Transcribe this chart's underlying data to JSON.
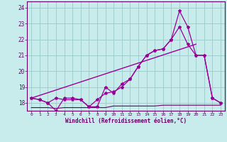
{
  "xlabel": "Windchill (Refroidissement éolien,°C)",
  "background_color": "#c8ecec",
  "grid_color": "#a0cece",
  "line_color": "#990099",
  "dark_line_color": "#660066",
  "xlim": [
    -0.5,
    23.5
  ],
  "ylim": [
    17.5,
    24.4
  ],
  "yticks": [
    18,
    19,
    20,
    21,
    22,
    23,
    24
  ],
  "xticks": [
    0,
    1,
    2,
    3,
    4,
    5,
    6,
    7,
    8,
    9,
    10,
    11,
    12,
    13,
    14,
    15,
    16,
    17,
    18,
    19,
    20,
    21,
    22,
    23
  ],
  "series1_x": [
    0,
    1,
    2,
    3,
    4,
    5,
    6,
    7,
    8,
    9,
    10,
    11,
    12,
    13,
    14,
    15,
    16,
    17,
    18,
    19,
    20,
    21,
    22,
    23
  ],
  "series1_y": [
    18.3,
    18.2,
    18.0,
    18.3,
    18.2,
    18.2,
    18.2,
    17.75,
    18.2,
    18.6,
    18.7,
    19.0,
    19.5,
    20.3,
    21.0,
    21.3,
    21.4,
    22.0,
    22.8,
    21.7,
    21.0,
    21.0,
    18.3,
    18.0
  ],
  "series2_x": [
    0,
    1,
    2,
    3,
    4,
    5,
    6,
    7,
    8,
    9,
    10,
    11,
    12,
    13,
    14,
    15,
    16,
    17,
    18,
    19,
    20,
    21,
    22,
    23
  ],
  "series2_y": [
    18.3,
    18.2,
    18.0,
    17.5,
    18.3,
    18.3,
    18.2,
    17.75,
    17.75,
    19.0,
    18.6,
    19.2,
    19.5,
    20.3,
    21.0,
    21.3,
    21.4,
    22.0,
    23.8,
    22.8,
    21.0,
    21.0,
    18.3,
    18.0
  ],
  "series3_x": [
    0,
    1,
    2,
    3,
    4,
    5,
    6,
    7,
    8,
    9,
    10,
    11,
    12,
    13,
    14,
    15,
    16,
    17,
    18,
    19,
    20,
    21,
    22,
    23
  ],
  "series3_y": [
    17.7,
    17.7,
    17.7,
    17.65,
    17.7,
    17.7,
    17.7,
    17.7,
    17.7,
    17.7,
    17.8,
    17.8,
    17.8,
    17.8,
    17.8,
    17.8,
    17.85,
    17.85,
    17.85,
    17.85,
    17.85,
    17.85,
    17.85,
    17.85
  ],
  "series4_x": [
    0,
    20
  ],
  "series4_y": [
    18.3,
    21.7
  ]
}
